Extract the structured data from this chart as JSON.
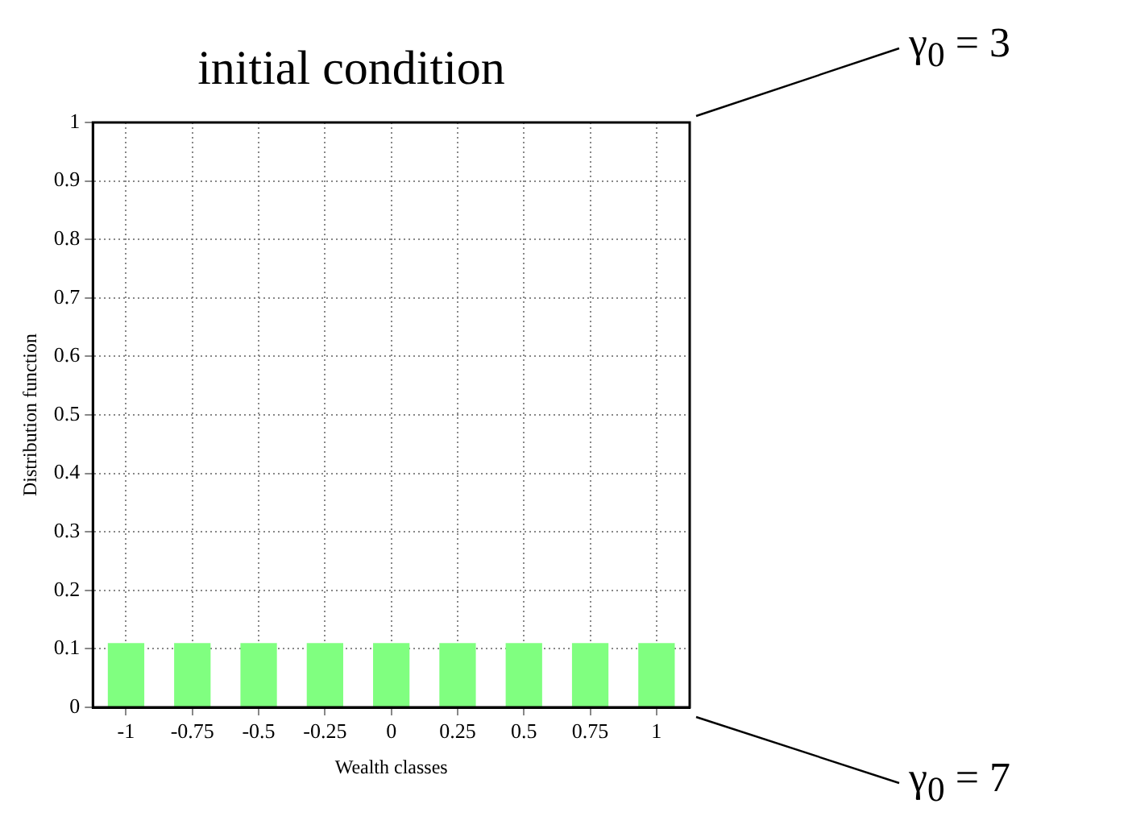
{
  "chart_data": {
    "type": "bar",
    "title": "initial condition",
    "xlabel": "Wealth classes",
    "ylabel": "Distribution function",
    "categories": [
      "-1",
      "-0.75",
      "-0.5",
      "-0.25",
      "0",
      "0.25",
      "0.5",
      "0.75",
      "1"
    ],
    "values": [
      0.11,
      0.11,
      0.11,
      0.11,
      0.11,
      0.11,
      0.11,
      0.11,
      0.11
    ],
    "color": "#80ff80",
    "ylim": [
      0,
      1
    ],
    "yticks": [
      0,
      0.1,
      0.2,
      0.3,
      0.4,
      0.5,
      0.6,
      0.7,
      0.8,
      0.9,
      1
    ],
    "grid": true,
    "legend": false,
    "annotations": [
      "γ$_{0}$ = 3",
      "γ$_{0}$ = 7"
    ]
  }
}
